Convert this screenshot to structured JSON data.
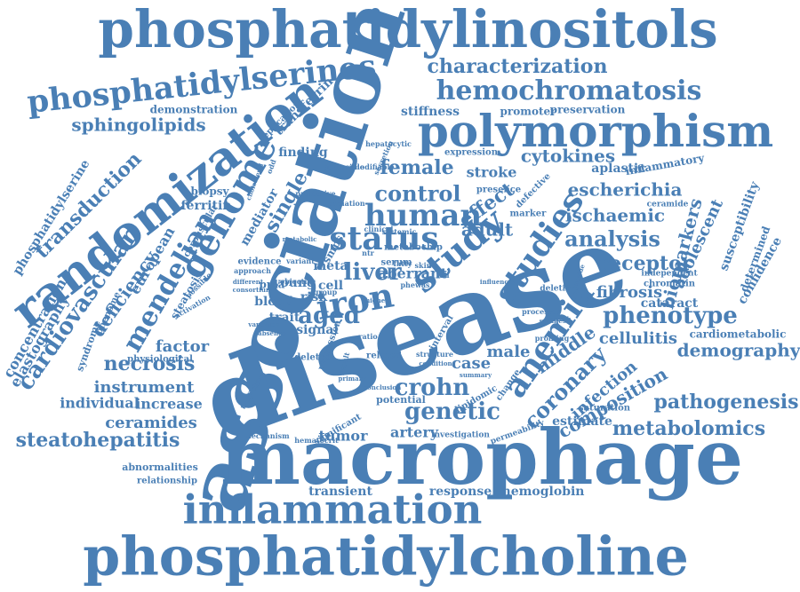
{
  "cloud": {
    "color": "#4a7fb5",
    "words": [
      "phosphatidylinositols",
      "phosphatidylserines",
      "characterization",
      "hemochromatosis",
      "polymorphism",
      "randomization",
      "association",
      "disease",
      "macrophage",
      "inflammation",
      "phosphatidylcholine",
      "sphingolipids",
      "transduction",
      "genome",
      "mendelian",
      "liver",
      "iron",
      "study",
      "status",
      "human",
      "control",
      "female",
      "stroke",
      "cytokines",
      "aplastic",
      "inflammatory",
      "escherichia",
      "ischaemic",
      "analysis",
      "receptor",
      "biomarkers",
      "adolescent",
      "susceptibility",
      "determined",
      "confidence",
      "phenotype",
      "fibrosis",
      "cataract",
      "cellulitis",
      "cardiometabolic",
      "demography",
      "anemia",
      "coronary",
      "infection",
      "composition",
      "pathogenesis",
      "metabolomics",
      "middle",
      "studies",
      "adult",
      "effect",
      "single",
      "aged",
      "genetic",
      "crohn",
      "case",
      "male",
      "steatohepatitis",
      "tumor",
      "artery",
      "estimate",
      "instrument",
      "individual",
      "increase",
      "ceramides",
      "necrosis",
      "factor",
      "cardiovascular",
      "deficiency",
      "european",
      "elastography",
      "concentration",
      "phosphatidylserine",
      "stiffness",
      "promoter",
      "preservation",
      "demonstration",
      "replication",
      "transferrin",
      "finding",
      "biopsy",
      "ferritin",
      "mediator",
      "young",
      "blood",
      "trait",
      "signal",
      "risk",
      "cell",
      "meta",
      "smps",
      "ppla",
      "potential",
      "significant",
      "lipidomic",
      "permeability",
      "investigation",
      "transient",
      "response",
      "hemoglobin",
      "abnormalities",
      "relationship",
      "physiological",
      "deleted",
      "related",
      "structure",
      "hematocrit",
      "mechanism",
      "trafficking",
      "syndrome",
      "phenome",
      "steatosis",
      "corpuscular",
      "evidence",
      "approach",
      "variant",
      "objective",
      "group",
      "ratio",
      "ceramide",
      "chromatin",
      "independent",
      "marker",
      "deletion",
      "processes",
      "profiling",
      "saturation",
      "clinical",
      "systemic",
      "presence",
      "defective",
      "deviation",
      "protective",
      "accessible",
      "modifiable",
      "secretion",
      "hepatocytic",
      "expression",
      "metabolic",
      "different",
      "possible",
      "activation",
      "consortium",
      "variation",
      "absence",
      "condition",
      "primary",
      "summary",
      "conclusion",
      "aberrant",
      "serum",
      "skin",
      "toll",
      "fatty",
      "coli",
      "health",
      "synthesis",
      "provide",
      "influence",
      "change",
      "interval",
      "result",
      "regression",
      "higher",
      "odd",
      "cholesterol",
      "metabochip",
      "phewas",
      "ntr",
      "mr"
    ]
  }
}
